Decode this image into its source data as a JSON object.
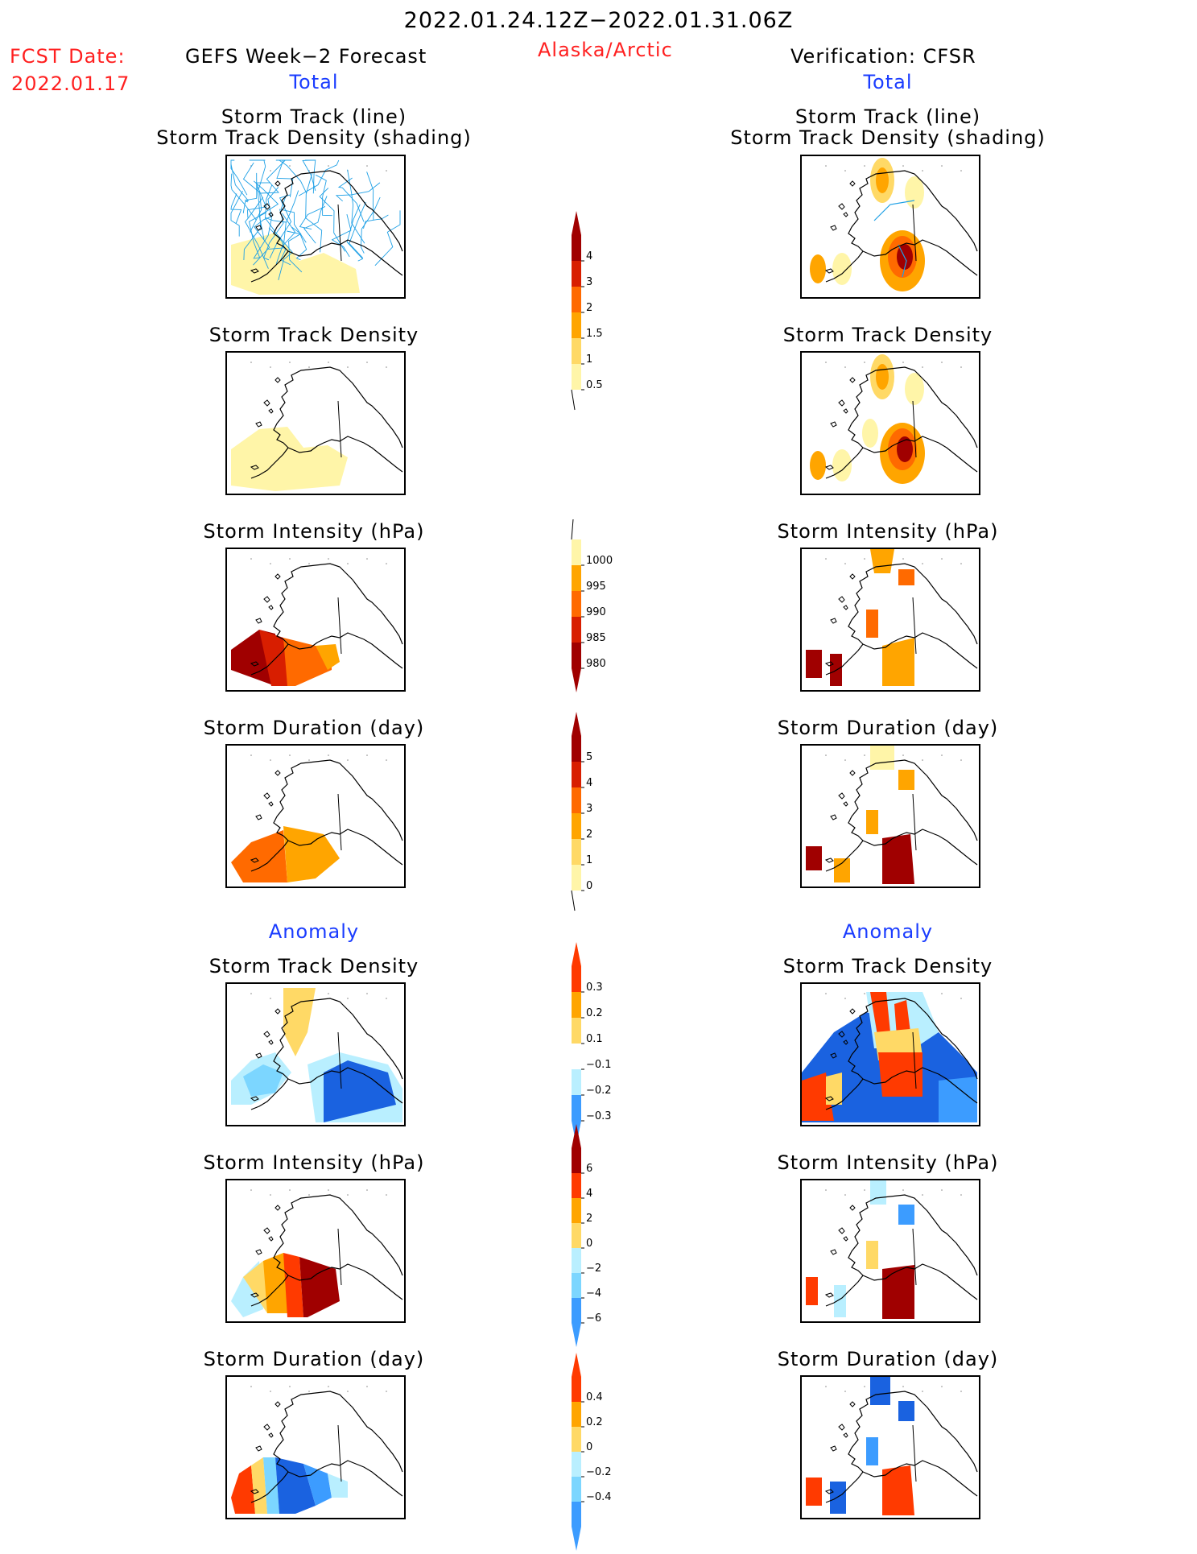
{
  "header": {
    "period": "2022.01.24.12Z−2022.01.31.06Z",
    "fcst_label": "FCST Date:",
    "fcst_date": "2022.01.17",
    "left_title": "GEFS Week−2 Forecast",
    "region": "Alaska/Arctic",
    "right_title": "Verification: CFSR",
    "left_sub": "Total",
    "right_sub": "Total"
  },
  "anomaly_label": "Anomaly",
  "panel_titles": {
    "track": "Storm Track (line)\nStorm Track Density (shading)",
    "density": "Storm Track Density",
    "intensity": "Storm Intensity (hPa)",
    "duration": "Storm Duration (day)"
  },
  "colors": {
    "light_yellow": "#fff5a8",
    "yellow": "#ffd966",
    "orange": "#ffa500",
    "dark_orange": "#ff6a00",
    "red_orange": "#ff3a00",
    "red": "#d81e00",
    "dark_red": "#a00000",
    "light_blue": "#b9efff",
    "sky_blue": "#7cd6ff",
    "blue": "#3c9cff",
    "dark_blue": "#1a62e0",
    "track_line": "#1ea0e6"
  },
  "colorbars": {
    "density": {
      "labels": [
        "4",
        "3",
        "2",
        "1.5",
        "1",
        "0.5"
      ]
    },
    "intensity": {
      "labels": [
        "1000",
        "995",
        "990",
        "985",
        "980"
      ]
    },
    "duration": {
      "labels": [
        "5",
        "4",
        "3",
        "2",
        "1",
        "0"
      ]
    },
    "density_anom": {
      "labels": [
        "0.3",
        "0.2",
        "0.1",
        "−0.1",
        "−0.2",
        "−0.3"
      ]
    },
    "intensity_anom": {
      "labels": [
        "6",
        "4",
        "2",
        "0",
        "−2",
        "−4",
        "−6"
      ]
    },
    "duration_anom": {
      "labels": [
        "0.4",
        "0.2",
        "0",
        "−0.2",
        "−0.4"
      ]
    }
  }
}
